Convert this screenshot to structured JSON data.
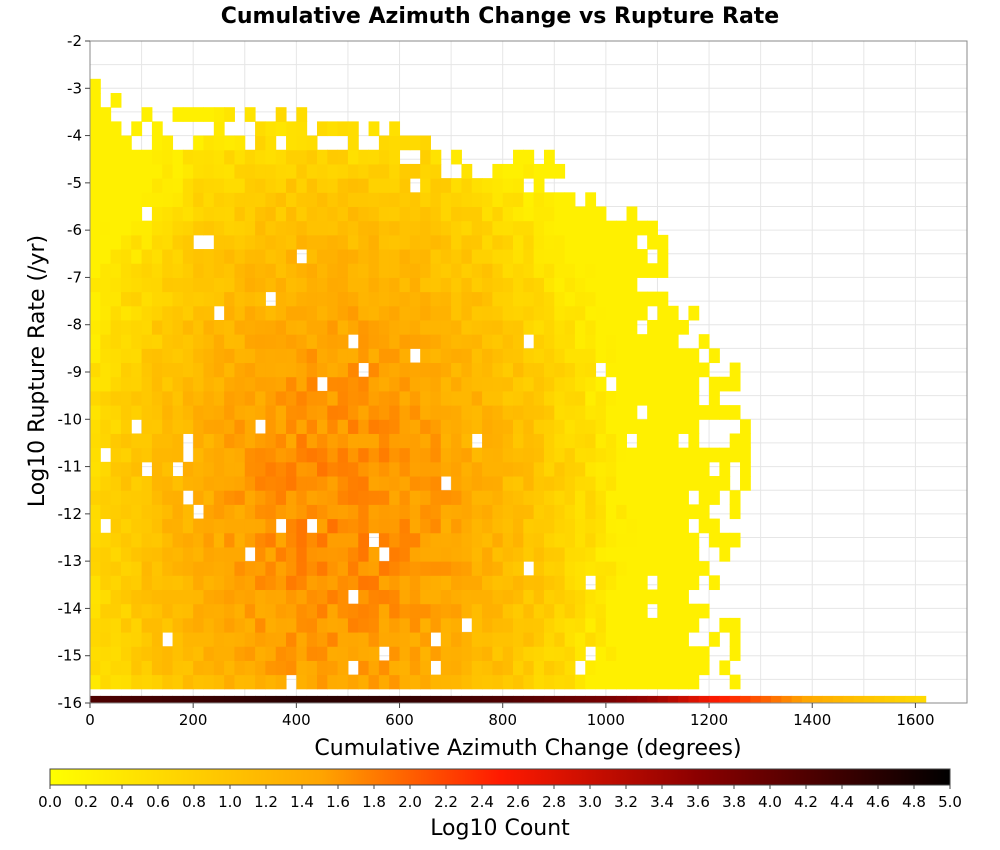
{
  "chart_data": {
    "type": "heatmap",
    "title": "Cumulative Azimuth Change vs Rupture Rate",
    "xlabel": "Cumulative Azimuth Change (degrees)",
    "ylabel": "Log10 Rupture Rate (/yr)",
    "xlim": [
      0,
      1700
    ],
    "ylim": [
      -16,
      -2
    ],
    "x_ticks": [
      0,
      200,
      400,
      600,
      800,
      1000,
      1200,
      1400,
      1600
    ],
    "y_ticks": [
      -2,
      -3,
      -4,
      -5,
      -6,
      -7,
      -8,
      -9,
      -10,
      -11,
      -12,
      -13,
      -14,
      -15,
      -16
    ],
    "grid": true,
    "bin_width_x": 20,
    "bin_height_y": 0.3,
    "colorbar": {
      "label": "Log10 Count",
      "range": [
        0.0,
        5.0
      ],
      "ticks": [
        "0.0",
        "0.2",
        "0.4",
        "0.6",
        "0.8",
        "1.0",
        "1.2",
        "1.4",
        "1.6",
        "1.8",
        "2.0",
        "2.2",
        "2.4",
        "2.6",
        "2.8",
        "3.0",
        "3.2",
        "3.4",
        "3.6",
        "3.8",
        "4.0",
        "4.2",
        "4.4",
        "4.6",
        "4.8",
        "5.0"
      ],
      "colors": [
        "#ffff00",
        "#ffa500",
        "#ff0000",
        "#8b0000",
        "#000000"
      ]
    },
    "bottom_row": {
      "y": -16,
      "description_values": [
        {
          "x": 0,
          "log10_count": 4.2
        },
        {
          "x": 200,
          "log10_count": 4.4
        },
        {
          "x": 400,
          "log10_count": 4.6
        },
        {
          "x": 600,
          "log10_count": 4.5
        },
        {
          "x": 800,
          "log10_count": 4.2
        },
        {
          "x": 1000,
          "log10_count": 3.8
        },
        {
          "x": 1100,
          "log10_count": 3.4
        },
        {
          "x": 1200,
          "log10_count": 2.6
        },
        {
          "x": 1260,
          "log10_count": 2.3
        },
        {
          "x": 1400,
          "log10_count": 1.4
        },
        {
          "x": 1500,
          "log10_count": 1.0
        },
        {
          "x": 1620,
          "log10_count": 0.6
        }
      ]
    },
    "density_profile": {
      "peak_x": 480,
      "peak_y": -12,
      "peak_log10_count": 1.7,
      "edge_log10_count_left": 0.6,
      "top_boundary": [
        {
          "x": 0,
          "y": -3.0
        },
        {
          "x": 100,
          "y": -3.6
        },
        {
          "x": 400,
          "y": -3.6
        },
        {
          "x": 700,
          "y": -4.2
        },
        {
          "x": 900,
          "y": -4.6
        },
        {
          "x": 1000,
          "y": -5.2
        },
        {
          "x": 1100,
          "y": -6.0
        },
        {
          "x": 1150,
          "y": -7.6
        },
        {
          "x": 1250,
          "y": -9.0
        },
        {
          "x": 1270,
          "y": -10.0
        },
        {
          "x": 1280,
          "y": -11.0
        },
        {
          "x": 1250,
          "y": -13.0
        },
        {
          "x": 1250,
          "y": -15.0
        }
      ]
    }
  }
}
